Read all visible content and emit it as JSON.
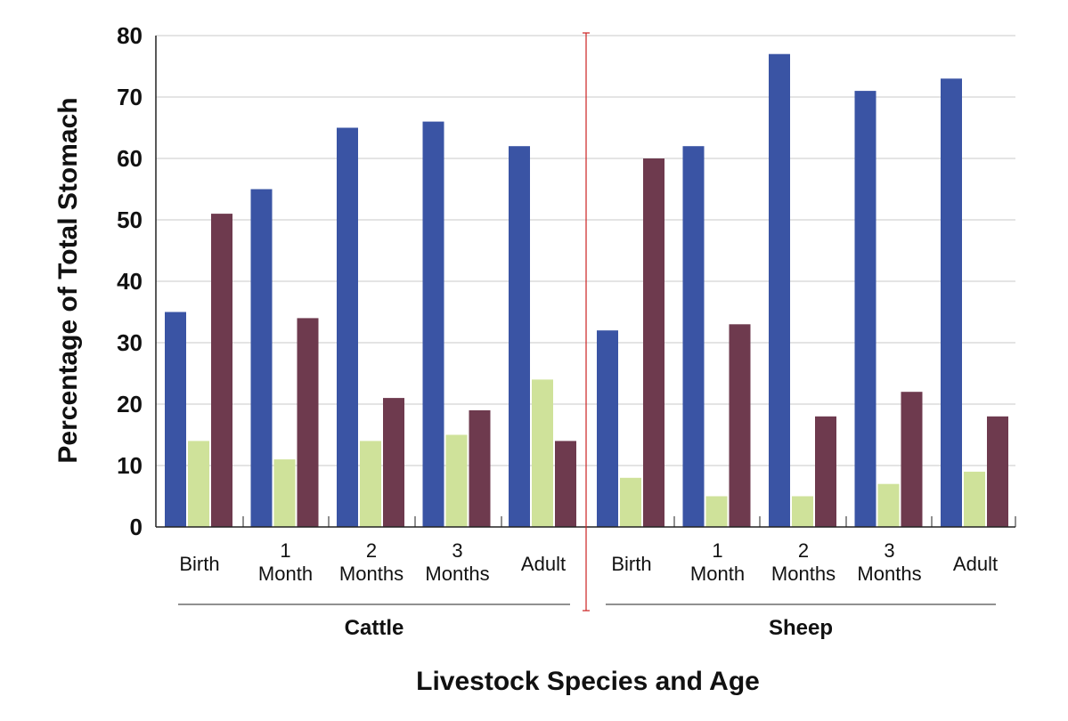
{
  "chart_data": {
    "type": "bar",
    "title": "",
    "xlabel": "Livestock Species and Age",
    "ylabel": "Percentage of Total Stomach",
    "ylim": [
      0,
      80
    ],
    "yticks": [
      "0",
      "10",
      "20",
      "30",
      "40",
      "50",
      "60",
      "70",
      "80"
    ],
    "grid": true,
    "legend": "none",
    "groups": [
      {
        "name": "Cattle",
        "categories": [
          [
            "Birth"
          ],
          [
            "1",
            "Month"
          ],
          [
            "2",
            "Months"
          ],
          [
            "3",
            "Months"
          ],
          [
            "Adult"
          ]
        ],
        "series": [
          {
            "color": "#3a54a4",
            "values": [
              35,
              55,
              65,
              66,
              62
            ]
          },
          {
            "color": "#cfe29a",
            "values": [
              14,
              11,
              14,
              15,
              24
            ]
          },
          {
            "color": "#6e3a4e",
            "values": [
              51,
              34,
              21,
              19,
              14
            ]
          }
        ]
      },
      {
        "name": "Sheep",
        "categories": [
          [
            "Birth"
          ],
          [
            "1",
            "Month"
          ],
          [
            "2",
            "Months"
          ],
          [
            "3",
            "Months"
          ],
          [
            "Adult"
          ]
        ],
        "series": [
          {
            "color": "#3a54a4",
            "values": [
              32,
              62,
              77,
              71,
              73
            ]
          },
          {
            "color": "#cfe29a",
            "values": [
              8,
              5,
              5,
              7,
              9
            ]
          },
          {
            "color": "#6e3a4e",
            "values": [
              60,
              33,
              18,
              22,
              18
            ]
          }
        ]
      }
    ],
    "colors": {
      "grid": "#c8c8c8",
      "axis": "#222222",
      "divider": "#cc2222"
    }
  }
}
